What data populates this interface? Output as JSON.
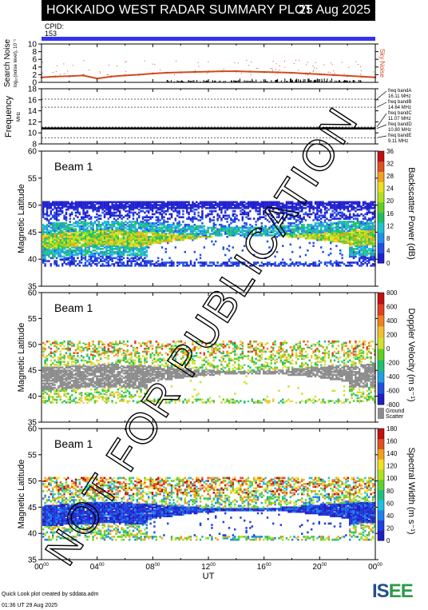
{
  "header": {
    "title": "HOKKAIDO WEST RADAR SUMMARY PLOT",
    "date": "25 Aug 2025",
    "cpid_label": "CPID:",
    "cpid_value": "153"
  },
  "colors": {
    "noise": "#d24a1f",
    "cpid_bar": "#3333ee",
    "ground_scatter": "#8c8c8c",
    "title_bg": "#000000"
  },
  "chart_data": [
    {
      "type": "scatter",
      "panel": "search-noise",
      "ylabel": "Search Noise",
      "ylabel_unit": "log₁₀(noise level), 10⁻¹",
      "ylim": [
        0,
        10
      ],
      "yticks": [
        "0",
        "2",
        "4",
        "6",
        "8",
        "10"
      ],
      "series": [
        {
          "name": "Sky Noise",
          "x_hours": [
            0,
            1,
            2,
            3,
            4,
            5,
            6,
            7,
            8,
            9,
            10,
            11,
            12,
            13,
            14,
            15,
            16,
            17,
            18,
            19,
            20,
            21,
            22,
            23,
            24
          ],
          "values": [
            1.3,
            1.5,
            1.6,
            1.8,
            1.0,
            1.5,
            1.8,
            2.0,
            2.3,
            2.5,
            2.6,
            2.7,
            2.8,
            2.9,
            2.9,
            2.8,
            2.7,
            2.6,
            2.5,
            2.3,
            2.1,
            1.9,
            1.7,
            1.5,
            1.3
          ]
        }
      ]
    },
    {
      "type": "line",
      "panel": "frequency",
      "ylabel": "Frequency",
      "ylabel_unit": "MHz",
      "ylim": [
        8,
        18
      ],
      "yticks": [
        "8",
        "10",
        "12",
        "14",
        "16",
        "18"
      ],
      "bands": [
        {
          "label": "freq bandA",
          "value_label": "16.11 MHz",
          "mhz": 16.11
        },
        {
          "label": "freq bandB",
          "value_label": "14.64 MHz",
          "mhz": 14.64
        },
        {
          "label": "freq bandC",
          "value_label": "11.07 MHz",
          "mhz": 11.07
        },
        {
          "label": "freq bandD",
          "value_label": "10.80 MHz",
          "mhz": 10.8
        },
        {
          "label": "freq bandE",
          "value_label": "9.11 MHz",
          "mhz": 9.11
        }
      ],
      "operating_mhz": 10.8
    },
    {
      "type": "heatmap",
      "panel": "power",
      "beam_label": "Beam  1",
      "ylabel": "Magnetic Latitude",
      "ylim": [
        35,
        60
      ],
      "yticks": [
        "35",
        "40",
        "45",
        "50",
        "55",
        "60"
      ],
      "colorbar_label": "Backscatter Power (dB)",
      "colorbar_ticks": [
        "0",
        "4",
        "8",
        "12",
        "16",
        "20",
        "24",
        "28",
        "32",
        "36"
      ],
      "colorbar_range": [
        0,
        36
      ]
    },
    {
      "type": "heatmap",
      "panel": "velocity",
      "beam_label": "Beam  1",
      "ylabel": "Magnetic Latitude",
      "ylim": [
        35,
        60
      ],
      "yticks": [
        "35",
        "40",
        "45",
        "50",
        "55",
        "60"
      ],
      "colorbar_label": "Doppler Velocity (m s⁻¹)",
      "colorbar_ticks": [
        "-800",
        "-600",
        "-400",
        "-200",
        "0",
        "200",
        "400",
        "600",
        "800"
      ],
      "colorbar_range": [
        -800,
        800
      ],
      "ground_scatter_label": "Ground",
      "ground_scatter_label2": "Scatter"
    },
    {
      "type": "heatmap",
      "panel": "width",
      "beam_label": "Beam  1",
      "ylabel": "Magnetic Latitude",
      "ylim": [
        35,
        60
      ],
      "yticks": [
        "35",
        "40",
        "45",
        "50",
        "55",
        "60"
      ],
      "colorbar_label": "Spectral Width (m s⁻¹)",
      "colorbar_ticks": [
        "0",
        "20",
        "40",
        "60",
        "80",
        "100",
        "120",
        "140",
        "160",
        "180"
      ],
      "colorbar_range": [
        0,
        180
      ],
      "xlabel": "UT",
      "xticks": [
        {
          "h": "00",
          "m": "00"
        },
        {
          "h": "04",
          "m": "00"
        },
        {
          "h": "08",
          "m": "00"
        },
        {
          "h": "12",
          "m": "00"
        },
        {
          "h": "16",
          "m": "00"
        },
        {
          "h": "20",
          "m": "00"
        },
        {
          "h": "00",
          "m": "00"
        }
      ],
      "xlim_hours": [
        0,
        24
      ]
    }
  ],
  "footer": {
    "credit_line1": "Quick Look plot created by sddata.adm",
    "credit_line2": "01:36 UT 29 Aug 2025",
    "logo_part1": "IS",
    "logo_part2": "EE"
  },
  "watermark": "NOT FOR PUBLICATION"
}
